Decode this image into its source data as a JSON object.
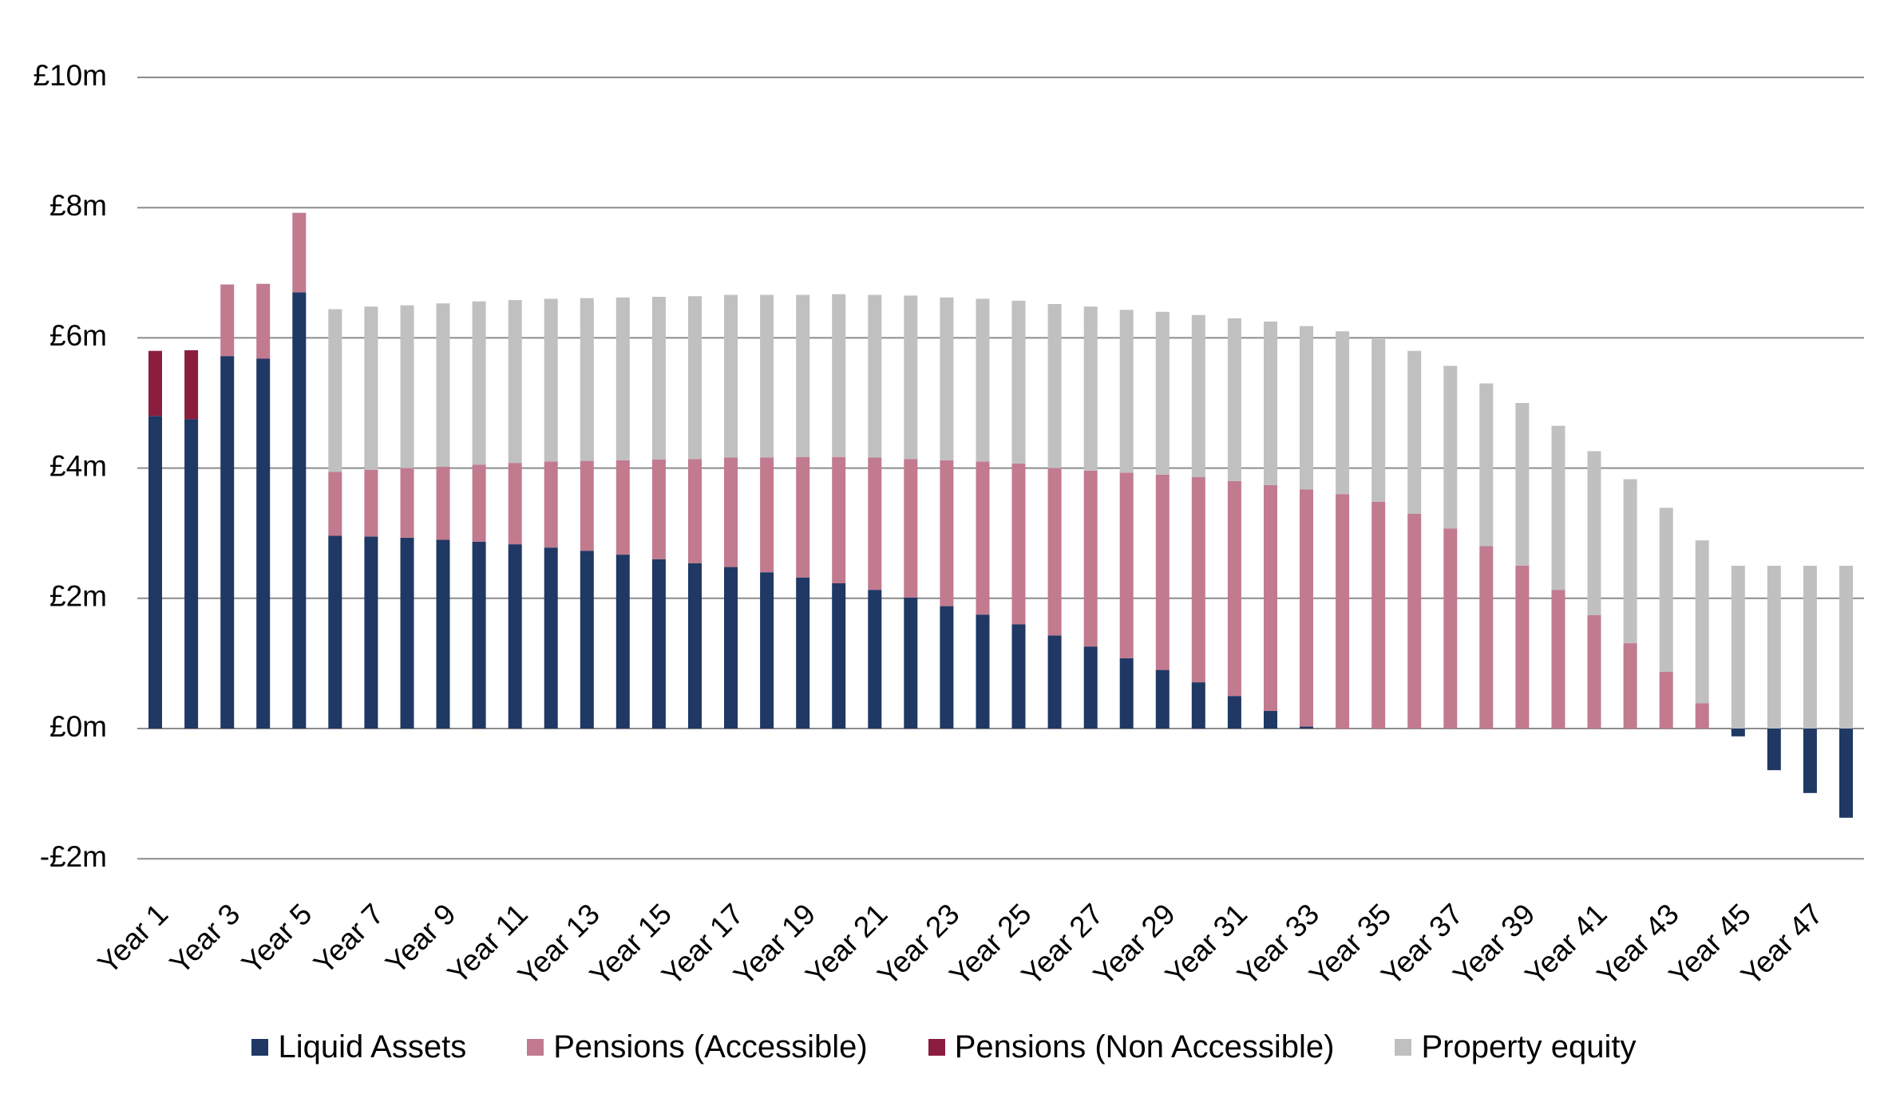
{
  "chart_data": {
    "type": "bar",
    "stacked": true,
    "title": "",
    "xlabel": "",
    "ylabel": "",
    "ylim": [
      -2,
      10
    ],
    "yticks": [
      -2,
      0,
      2,
      4,
      6,
      8,
      10
    ],
    "ytick_labels": [
      "-£2m",
      "£0m",
      "£2m",
      "£4m",
      "£6m",
      "£8m",
      "£10m"
    ],
    "grid": "horizontal",
    "legend_position": "bottom",
    "categories": [
      "Year 1",
      "Year 2",
      "Year 3",
      "Year 4",
      "Year 5",
      "Year 6",
      "Year 7",
      "Year 8",
      "Year 9",
      "Year 10",
      "Year 11",
      "Year 12",
      "Year 13",
      "Year 14",
      "Year 15",
      "Year 16",
      "Year 17",
      "Year 18",
      "Year 19",
      "Year 20",
      "Year 21",
      "Year 22",
      "Year 23",
      "Year 24",
      "Year 25",
      "Year 26",
      "Year 27",
      "Year 28",
      "Year 29",
      "Year 30",
      "Year 31",
      "Year 32",
      "Year 33",
      "Year 34",
      "Year 35",
      "Year 36",
      "Year 37",
      "Year 38",
      "Year 39",
      "Year 40",
      "Year 41",
      "Year 42",
      "Year 43",
      "Year 44",
      "Year 45",
      "Year 46",
      "Year 47",
      "Year 48"
    ],
    "shown_x_labels": [
      "Year 1",
      "Year 3",
      "Year 5",
      "Year 7",
      "Year 9",
      "Year 11",
      "Year 13",
      "Year 15",
      "Year 17",
      "Year 19",
      "Year 21",
      "Year 23",
      "Year 25",
      "Year 27",
      "Year 29",
      "Year 31",
      "Year 33",
      "Year 35",
      "Year 37",
      "Year 39",
      "Year 41",
      "Year 43",
      "Year 45",
      "Year 47"
    ],
    "series": [
      {
        "name": "Liquid Assets",
        "color": "#1f3864",
        "values": [
          4.8,
          4.75,
          5.72,
          5.68,
          6.7,
          2.96,
          2.95,
          2.93,
          2.9,
          2.87,
          2.83,
          2.78,
          2.73,
          2.67,
          2.6,
          2.54,
          2.48,
          2.4,
          2.32,
          2.23,
          2.13,
          2.01,
          1.88,
          1.75,
          1.6,
          1.43,
          1.26,
          1.08,
          0.9,
          0.71,
          0.5,
          0.27,
          0.03,
          0,
          0,
          0,
          0,
          0,
          0,
          0,
          0,
          0,
          0,
          0,
          -0.12,
          -0.64,
          -0.99,
          -1.37
        ]
      },
      {
        "name": "Pensions (Accessible)",
        "color": "#c27a8f",
        "values": [
          0,
          0,
          1.1,
          1.15,
          1.22,
          0.98,
          1.02,
          1.07,
          1.12,
          1.18,
          1.25,
          1.32,
          1.38,
          1.45,
          1.53,
          1.6,
          1.68,
          1.76,
          1.85,
          1.94,
          2.03,
          2.13,
          2.24,
          2.35,
          2.47,
          2.57,
          2.7,
          2.85,
          3.0,
          3.15,
          3.3,
          3.47,
          3.64,
          3.6,
          3.48,
          3.3,
          3.07,
          2.8,
          2.5,
          2.13,
          1.74,
          1.31,
          0.87,
          0.39,
          0,
          0,
          0,
          0
        ]
      },
      {
        "name": "Pensions (Non Accessible)",
        "color": "#8b1e3f",
        "values": [
          1.0,
          1.06,
          0,
          0,
          0,
          0,
          0,
          0,
          0,
          0,
          0,
          0,
          0,
          0,
          0,
          0,
          0,
          0,
          0,
          0,
          0,
          0,
          0,
          0,
          0,
          0,
          0,
          0,
          0,
          0,
          0,
          0,
          0,
          0,
          0,
          0,
          0,
          0,
          0,
          0,
          0,
          0,
          0,
          0,
          0,
          0,
          0,
          0
        ]
      },
      {
        "name": "Property equity",
        "color": "#c0c0c0",
        "values": [
          0,
          0,
          0,
          0,
          0,
          2.5,
          2.51,
          2.5,
          2.51,
          2.51,
          2.5,
          2.5,
          2.5,
          2.5,
          2.5,
          2.5,
          2.5,
          2.5,
          2.49,
          2.5,
          2.5,
          2.51,
          2.5,
          2.5,
          2.5,
          2.52,
          2.52,
          2.5,
          2.5,
          2.49,
          2.5,
          2.51,
          2.51,
          2.5,
          2.5,
          2.5,
          2.5,
          2.5,
          2.5,
          2.52,
          2.52,
          2.52,
          2.52,
          2.5,
          2.5,
          2.5,
          2.5,
          2.5
        ]
      }
    ]
  }
}
